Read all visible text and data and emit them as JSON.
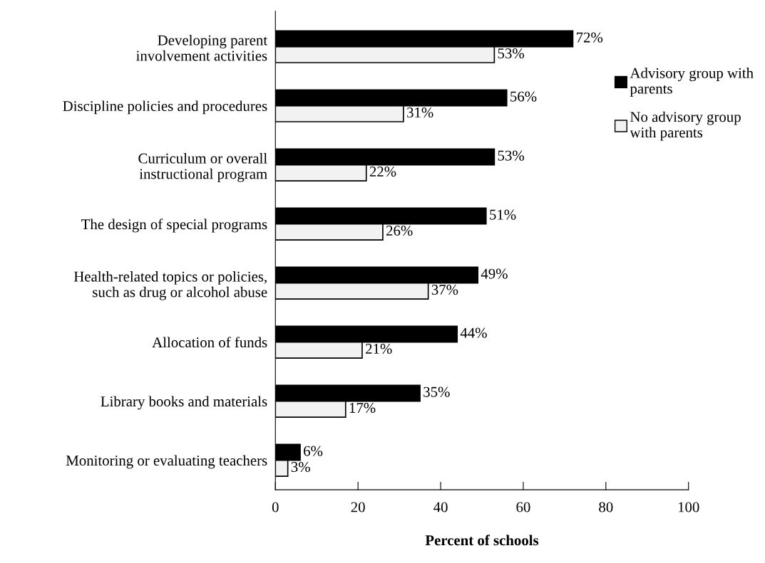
{
  "chart_data": {
    "type": "bar",
    "orientation": "horizontal",
    "xlabel": "Percent of schools",
    "categories": [
      "Developing parent\ninvolvement activities",
      "Discipline policies and procedures",
      "Curriculum or overall\ninstructional program",
      "The design of special programs",
      "Health-related topics or policies,\nsuch as drug or alcohol abuse",
      "Allocation of funds",
      "Library books and materials",
      "Monitoring or evaluating teachers"
    ],
    "series": [
      {
        "name": "Advisory group with\nparents",
        "color": "#000000",
        "values": [
          72,
          56,
          53,
          51,
          49,
          44,
          35,
          6
        ],
        "value_labels": [
          "72%",
          "56%",
          "53%",
          "51%",
          "49%",
          "44%",
          "35%",
          "6%"
        ]
      },
      {
        "name": "No advisory group\nwith parents",
        "color": "#f2f2f2",
        "values": [
          53,
          31,
          22,
          26,
          37,
          21,
          17,
          3
        ],
        "value_labels": [
          "53%",
          "31%",
          "22%",
          "26%",
          "37%",
          "21%",
          "17%",
          "3%"
        ]
      }
    ],
    "xlim": [
      0,
      100
    ],
    "xticks": [
      0,
      20,
      40,
      60,
      80,
      100
    ],
    "grid": false,
    "legend": "top right"
  }
}
